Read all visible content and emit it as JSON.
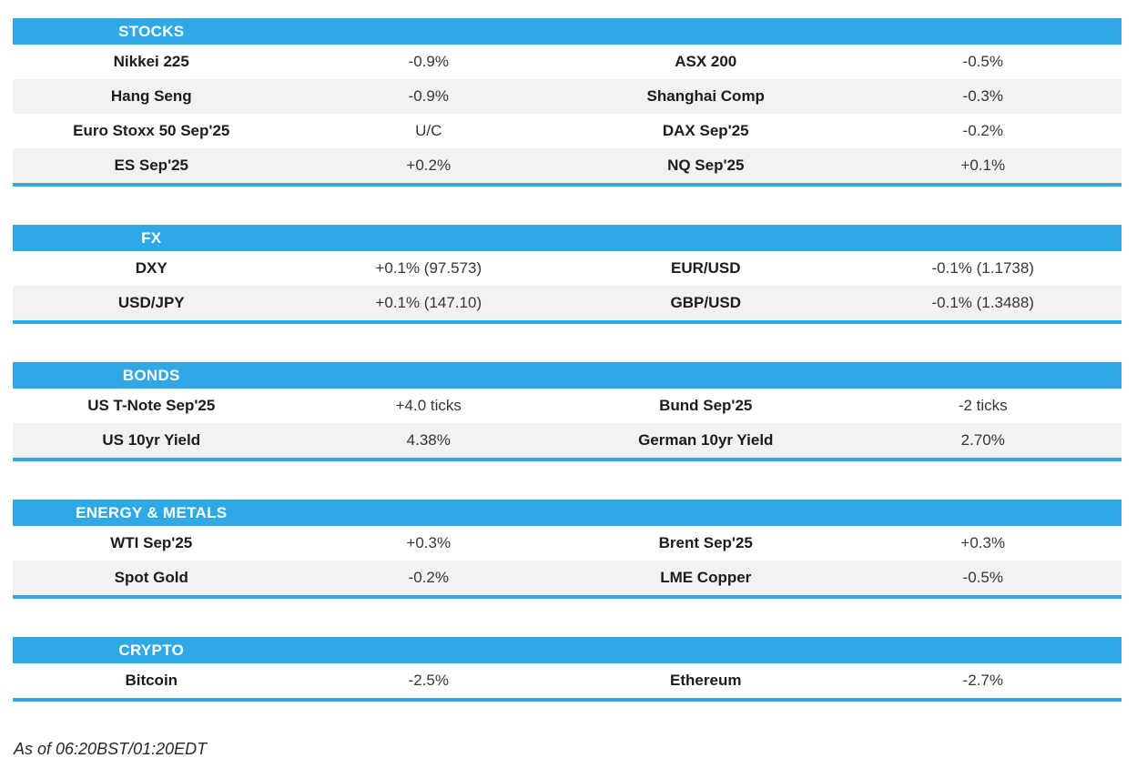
{
  "colors": {
    "accent": "#2EA9E6",
    "row_alt_bg": "#F2F2F2",
    "header_text": "#FFFFFF",
    "label_text": "#1B1B22",
    "value_text": "#35353D"
  },
  "sections": [
    {
      "title": "STOCKS",
      "rows": [
        [
          "Nikkei 225",
          "-0.9%",
          "ASX 200",
          "-0.5%"
        ],
        [
          "Hang Seng",
          "-0.9%",
          "Shanghai Comp",
          "-0.3%"
        ],
        [
          "Euro Stoxx 50 Sep'25",
          "U/C",
          "DAX Sep'25",
          "-0.2%"
        ],
        [
          "ES Sep'25",
          "+0.2%",
          "NQ Sep'25",
          "+0.1%"
        ]
      ]
    },
    {
      "title": "FX",
      "rows": [
        [
          "DXY",
          "+0.1% (97.573)",
          "EUR/USD",
          "-0.1% (1.1738)"
        ],
        [
          "USD/JPY",
          "+0.1% (147.10)",
          "GBP/USD",
          "-0.1% (1.3488)"
        ]
      ]
    },
    {
      "title": "BONDS",
      "rows": [
        [
          "US T-Note Sep'25",
          "+4.0 ticks",
          "Bund Sep'25",
          "-2 ticks"
        ],
        [
          "US 10yr Yield",
          "4.38%",
          "German 10yr Yield",
          "2.70%"
        ]
      ]
    },
    {
      "title": "ENERGY & METALS",
      "rows": [
        [
          "WTI Sep'25",
          "+0.3%",
          "Brent Sep'25",
          "+0.3%"
        ],
        [
          "Spot Gold",
          "-0.2%",
          "LME Copper",
          "-0.5%"
        ]
      ]
    },
    {
      "title": "CRYPTO",
      "rows": [
        [
          "Bitcoin",
          "-2.5%",
          "Ethereum",
          "-2.7%"
        ]
      ]
    }
  ],
  "footer": {
    "as_of": "As of 06:20BST/01:20EDT"
  }
}
